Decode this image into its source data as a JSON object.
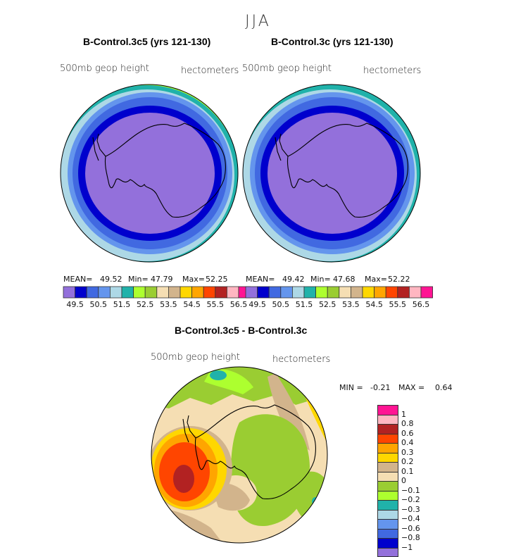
{
  "season": "JJA",
  "panels": [
    {
      "title": "B-Control.3c5 (yrs 121-130)",
      "variable": "500mb geop height",
      "units": "hectometers",
      "stats": {
        "mean_label": "MEAN=",
        "mean": "49.52",
        "min_label": "Min=",
        "min": "47.79",
        "max_label": "Max=",
        "max": "52.25"
      }
    },
    {
      "title": "B-Control.3c (yrs 121-130)",
      "variable": "500mb geop height",
      "units": "hectometers",
      "stats": {
        "mean_label": "MEAN=",
        "mean": "49.42",
        "min_label": "Min=",
        "min": "47.68",
        "max_label": "Max=",
        "max": "52.22"
      }
    }
  ],
  "diff_panel": {
    "title": "B-Control.3c5 - B-Control.3c",
    "variable": "500mb geop height",
    "units": "hectometers",
    "min_label": "MIN =",
    "min": "-0.21",
    "max_label": "MAX =",
    "max": "0.64"
  },
  "chart_data": [
    {
      "type": "heatmap",
      "projection": "south-polar-stereographic",
      "title": "B-Control.3c5 (yrs 121-130)",
      "subtitle": "500mb geop height (hectometers)",
      "mean": 49.52,
      "min": 47.79,
      "max": 52.25,
      "levels": [
        49.5,
        50,
        50.5,
        51,
        51.5,
        52,
        52.5,
        53,
        53.5,
        54,
        54.5,
        55,
        55.5,
        56,
        56.5
      ],
      "colorbar_labels": [
        "49.5",
        "50.5",
        "51.5",
        "52.5",
        "53.5",
        "54.5",
        "55.5",
        "56.5"
      ],
      "colors": [
        "#9370db",
        "#0000cd",
        "#4169e1",
        "#6495ed",
        "#add8e6",
        "#20b2aa",
        "#adff2f",
        "#9acd32",
        "#f5deb3",
        "#d2b48c",
        "#ffd700",
        "#ffa500",
        "#ff4500",
        "#b22222",
        "#ffb6c1",
        "#ff1493"
      ],
      "ring_values": [
        48.5,
        49.75,
        50.25,
        50.75,
        51.25,
        51.75,
        52.25
      ]
    },
    {
      "type": "heatmap",
      "projection": "south-polar-stereographic",
      "title": "B-Control.3c (yrs 121-130)",
      "subtitle": "500mb geop height (hectometers)",
      "mean": 49.42,
      "min": 47.68,
      "max": 52.22,
      "levels": [
        49.5,
        50,
        50.5,
        51,
        51.5,
        52,
        52.5,
        53,
        53.5,
        54,
        54.5,
        55,
        55.5,
        56,
        56.5
      ],
      "colorbar_labels": [
        "49.5",
        "50.5",
        "51.5",
        "52.5",
        "53.5",
        "54.5",
        "55.5",
        "56.5"
      ],
      "colors": [
        "#9370db",
        "#0000cd",
        "#4169e1",
        "#6495ed",
        "#add8e6",
        "#20b2aa",
        "#adff2f",
        "#9acd32",
        "#f5deb3",
        "#d2b48c",
        "#ffd700",
        "#ffa500",
        "#ff4500",
        "#b22222",
        "#ffb6c1",
        "#ff1493"
      ],
      "ring_values": [
        48.5,
        49.75,
        50.25,
        50.75,
        51.25,
        51.75
      ]
    },
    {
      "type": "heatmap",
      "projection": "south-polar-stereographic",
      "title": "B-Control.3c5 - B-Control.3c",
      "subtitle": "500mb geop height (hectometers)",
      "min": -0.21,
      "max": 0.64,
      "levels": [
        -1,
        -0.8,
        -0.6,
        -0.4,
        -0.3,
        -0.2,
        -0.1,
        0,
        0.1,
        0.2,
        0.3,
        0.4,
        0.6,
        0.8,
        1
      ],
      "colorbar_labels": [
        "1",
        "0.8",
        "0.6",
        "0.4",
        "0.3",
        "0.2",
        "0.1",
        "0",
        "−0.1",
        "−0.2",
        "−0.3",
        "−0.4",
        "−0.6",
        "−0.8",
        "−1"
      ],
      "colors_top_to_bottom": [
        "#ff1493",
        "#ffb6c1",
        "#b22222",
        "#ff4500",
        "#ffa500",
        "#ffd700",
        "#d2b48c",
        "#f5deb3",
        "#9acd32",
        "#adff2f",
        "#20b2aa",
        "#add8e6",
        "#6495ed",
        "#4169e1",
        "#0000cd",
        "#9370db"
      ]
    }
  ]
}
